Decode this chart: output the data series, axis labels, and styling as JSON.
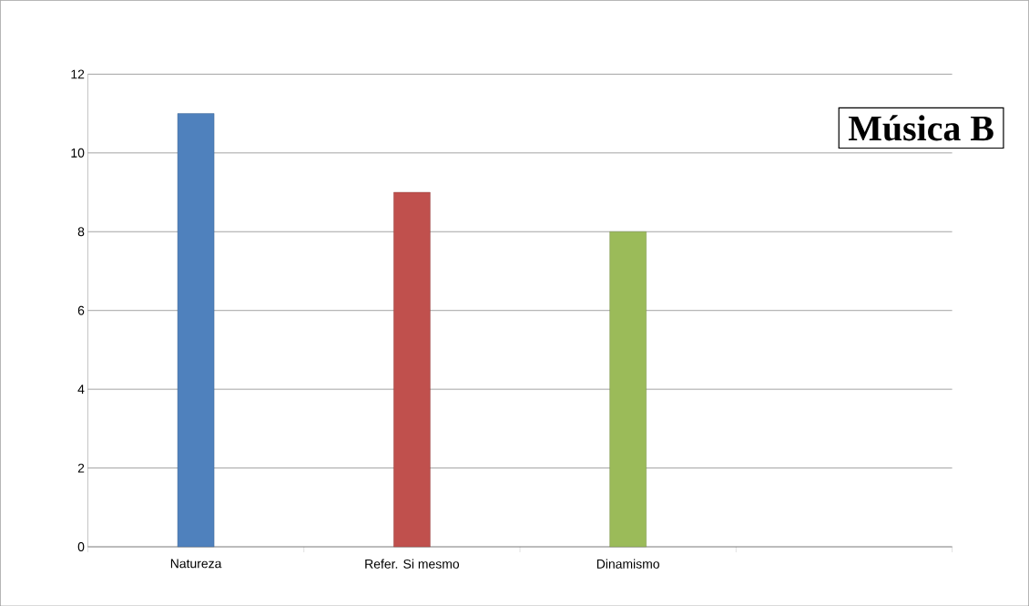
{
  "chart_data": {
    "type": "bar",
    "title": "Música B",
    "categories": [
      "Natureza",
      "Refer. Si mesmo",
      "Dinamismo",
      null
    ],
    "values": [
      11,
      9,
      8,
      null
    ],
    "colors": [
      "#4f81bd",
      "#c0504d",
      "#9bbb59",
      "#4f81bd"
    ],
    "ylim": [
      0,
      12
    ],
    "yticks": [
      0,
      2,
      4,
      6,
      8,
      10,
      12
    ],
    "grid": "y"
  }
}
